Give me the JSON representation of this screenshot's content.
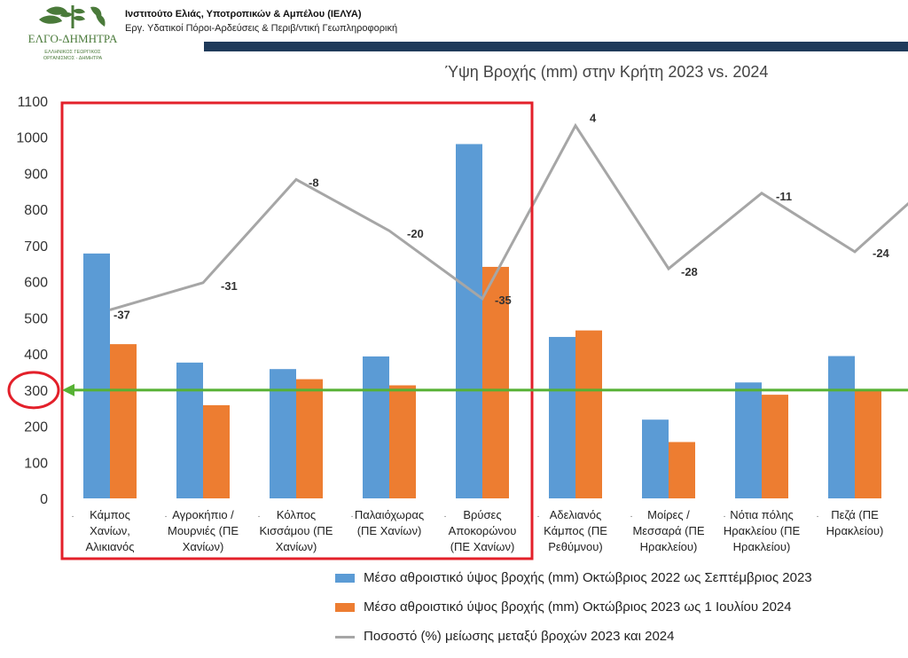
{
  "header": {
    "institute": "Ινστιτούτο Ελιάς, Υποτροπικών & Αμπέλου (ΙΕΛΥΑ)",
    "department": "Εργ. Υδατικοί Πόροι-Αρδεύσεις & Περιβ/ντική Γεωπληροφορική",
    "logo_text": "ΕΛΓΟ-ΔΗΜΗΤΡΑ",
    "logo_subtext": [
      "ΕΛΛΗΝΙΚΟΣ ΓΕΩΡΓΙΚΟΣ",
      "ΟΡΓΑΝΙΣΜΟΣ - ΔΗΜΗΤΡΑ"
    ]
  },
  "colors": {
    "series_2023": "#5b9bd5",
    "series_2024": "#ed7d31",
    "line": "#a6a6a6",
    "highlight_box": "#e3202a",
    "reference_line": "#56b134",
    "header_bar": "#1f3a5a"
  },
  "chart_data": {
    "type": "bar",
    "title": "Ύψη Βροχής (mm) στην Κρήτη 2023 vs. 2024",
    "ylim": [
      0,
      1100
    ],
    "yticks": [
      "0",
      "100",
      "200",
      "300",
      "400",
      "500",
      "600",
      "700",
      "800",
      "900",
      "1000",
      "1100"
    ],
    "categories": [
      [
        "Κάμπος",
        "Χανίων,",
        "Αλικιανός"
      ],
      [
        "Αγροκήπιο /",
        "Μουρνιές (ΠΕ",
        "Χανίων)"
      ],
      [
        "Κόλπος",
        "Κισσάμου (ΠΕ",
        "Χανίων)"
      ],
      [
        "Παλαιόχωρας",
        "(ΠΕ Χανίων)"
      ],
      [
        "Βρύσες",
        "Αποκορώνου",
        "(ΠΕ Χανίων)"
      ],
      [
        "Αδελιανός",
        "Κάμπος (ΠΕ",
        "Ρεθύμνου)"
      ],
      [
        "Μοίρες /",
        "Μεσσαρά (ΠΕ",
        "Ηρακλείου)"
      ],
      [
        "Νότια πόλης",
        "Ηρακλείου (ΠΕ",
        "Ηρακλείου)"
      ],
      [
        "Πεζά (ΠΕ",
        "Ηρακλείου)"
      ]
    ],
    "series": [
      {
        "name": "Μέσο αθροιστικό ύψος βροχής (mm) Οκτώβριος 2022 ως Σεπτέμβριος 2023",
        "type": "bar",
        "values": [
          678,
          376,
          358,
          393,
          981,
          447,
          218,
          321,
          394
        ]
      },
      {
        "name": "Μέσο αθροιστικό ύψος βροχής (mm)  Οκτώβριος 2023 ως 1 Ιουλίου 2024",
        "type": "bar",
        "values": [
          427,
          258,
          330,
          313,
          641,
          465,
          156,
          287,
          300
        ]
      },
      {
        "name": "Ποσοστό (%) μείωσης μεταξύ βροχών 2023 και 2024",
        "type": "line",
        "values": [
          -37,
          -31,
          -8,
          -20,
          -35,
          4,
          -28,
          -11,
          -24
        ],
        "labels": [
          "-37",
          "-31",
          "-8",
          "-20",
          "-35",
          "4",
          "-28",
          "-11",
          "-24"
        ],
        "plotted": [
          522,
          597,
          883,
          741,
          553,
          1032,
          636,
          845,
          683
        ]
      }
    ],
    "reference_line_value": 300,
    "highlight_categories": [
      0,
      1,
      2,
      3,
      4
    ],
    "legend": [
      "Μέσο αθροιστικό ύψος βροχής (mm) Οκτώβριος 2022 ως Σεπτέμβριος 2023",
      "Μέσο αθροιστικό ύψος βροχής (mm)  Οκτώβριος 2023 ως 1 Ιουλίου 2024",
      "Ποσοστό (%) μείωσης μεταξύ βροχών 2023 και 2024"
    ]
  }
}
